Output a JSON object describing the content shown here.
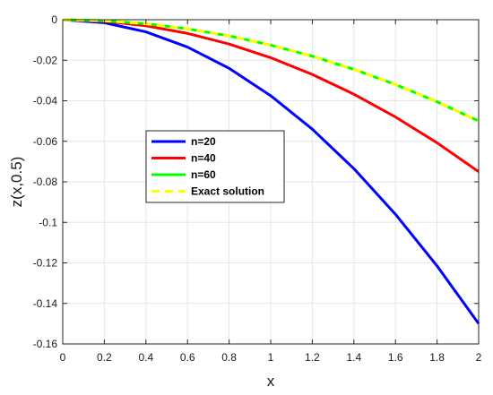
{
  "chart_data": {
    "type": "line",
    "title": "",
    "xlabel": "x",
    "ylabel": "z(x,0.5)",
    "xlim": [
      0,
      2
    ],
    "ylim": [
      -0.16,
      0
    ],
    "xticks": [
      0,
      0.2,
      0.4,
      0.6,
      0.8,
      1,
      1.2,
      1.4,
      1.6,
      1.8,
      2
    ],
    "xtick_labels": [
      "0",
      "0.2",
      "0.4",
      "0.6",
      "0.8",
      "1",
      "1.2",
      "1.4",
      "1.6",
      "1.8",
      "2"
    ],
    "yticks": [
      0,
      -0.02,
      -0.04,
      -0.06,
      -0.08,
      -0.1,
      -0.12,
      -0.14,
      -0.16
    ],
    "ytick_labels": [
      "0",
      "-0.02",
      "-0.04",
      "-0.06",
      "-0.08",
      "-0.1",
      "-0.12",
      "-0.14",
      "-0.16"
    ],
    "grid": true,
    "legend_position": "center-left",
    "x": [
      0,
      0.2,
      0.4,
      0.6,
      0.8,
      1.0,
      1.2,
      1.4,
      1.6,
      1.8,
      2.0
    ],
    "series": [
      {
        "name": "n=20",
        "color": "#0000ff",
        "style": "solid",
        "values": [
          0,
          -0.0015,
          -0.006,
          -0.0135,
          -0.024,
          -0.0375,
          -0.054,
          -0.0735,
          -0.096,
          -0.1215,
          -0.15
        ]
      },
      {
        "name": "n=40",
        "color": "#ff0000",
        "style": "solid",
        "values": [
          0,
          -0.00075,
          -0.003,
          -0.00675,
          -0.012,
          -0.01875,
          -0.027,
          -0.03675,
          -0.048,
          -0.06075,
          -0.075
        ]
      },
      {
        "name": "n=60",
        "color": "#00ff00",
        "style": "solid",
        "values": [
          0,
          -0.0005,
          -0.002,
          -0.0045,
          -0.008,
          -0.0125,
          -0.018,
          -0.0245,
          -0.032,
          -0.0405,
          -0.05
        ]
      },
      {
        "name": "Exact solution",
        "color": "#ffff00",
        "style": "dashed",
        "values": [
          0,
          -0.0005,
          -0.002,
          -0.0045,
          -0.008,
          -0.0125,
          -0.018,
          -0.0245,
          -0.032,
          -0.0405,
          -0.05
        ]
      }
    ]
  }
}
